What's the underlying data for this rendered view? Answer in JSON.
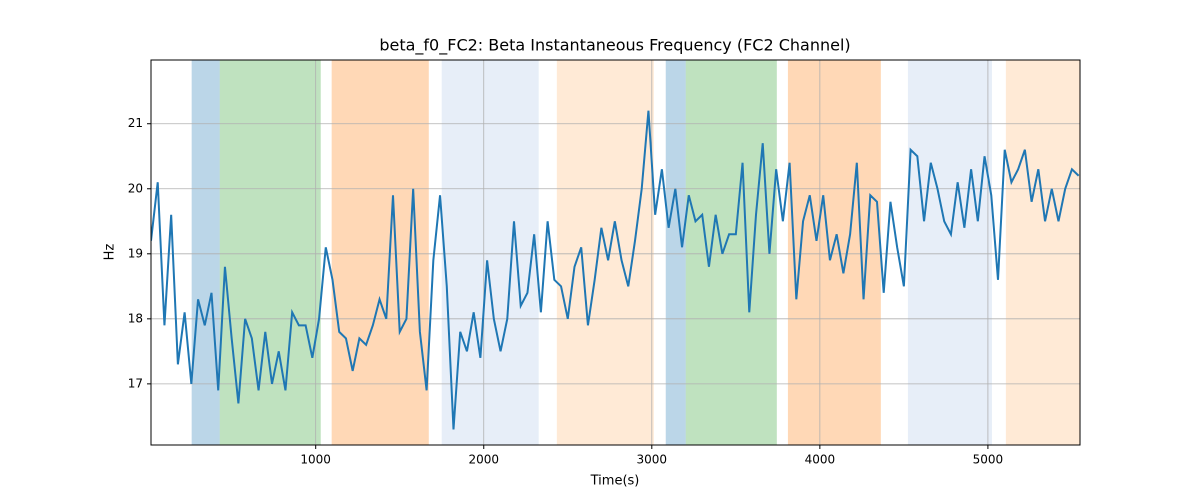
{
  "chart_data": {
    "type": "line",
    "title": "beta_f0_FC2: Beta Instantaneous Frequency (FC2 Channel)",
    "x_label": "Time(s)",
    "y_label": "Hz",
    "x": [
      20,
      60,
      100,
      140,
      180,
      220,
      260,
      300,
      340,
      380,
      420,
      460,
      500,
      540,
      580,
      620,
      660,
      700,
      740,
      780,
      820,
      860,
      900,
      940,
      980,
      1020,
      1060,
      1100,
      1140,
      1180,
      1220,
      1260,
      1300,
      1340,
      1380,
      1420,
      1460,
      1500,
      1540,
      1580,
      1620,
      1660,
      1700,
      1740,
      1780,
      1820,
      1860,
      1900,
      1940,
      1980,
      2020,
      2060,
      2100,
      2140,
      2180,
      2220,
      2260,
      2300,
      2340,
      2380,
      2420,
      2460,
      2500,
      2540,
      2580,
      2620,
      2660,
      2700,
      2740,
      2780,
      2820,
      2860,
      2900,
      2940,
      2980,
      3020,
      3060,
      3100,
      3140,
      3180,
      3220,
      3260,
      3300,
      3340,
      3380,
      3420,
      3460,
      3500,
      3540,
      3580,
      3620,
      3660,
      3700,
      3740,
      3780,
      3820,
      3860,
      3900,
      3940,
      3980,
      4020,
      4060,
      4100,
      4140,
      4180,
      4220,
      4260,
      4300,
      4340,
      4380,
      4420,
      4460,
      4500,
      4540,
      4580,
      4620,
      4660,
      4700,
      4740,
      4780,
      4820,
      4860,
      4900,
      4940,
      4980,
      5020,
      5060,
      5100,
      5140,
      5180,
      5220,
      5260,
      5300,
      5340,
      5380,
      5420,
      5460,
      5500,
      5540
    ],
    "values": [
      19.2,
      20.1,
      17.9,
      19.6,
      17.3,
      18.1,
      17.0,
      18.3,
      17.9,
      18.4,
      16.9,
      18.8,
      17.7,
      16.7,
      18.0,
      17.7,
      16.9,
      17.8,
      17.0,
      17.5,
      16.9,
      18.1,
      17.9,
      17.9,
      17.4,
      18.0,
      19.1,
      18.6,
      17.8,
      17.7,
      17.2,
      17.7,
      17.6,
      17.9,
      18.3,
      18.0,
      19.9,
      17.8,
      18.0,
      20.0,
      17.8,
      16.9,
      18.9,
      19.9,
      18.5,
      16.3,
      17.8,
      17.5,
      18.1,
      17.4,
      18.9,
      18.0,
      17.5,
      18.0,
      19.5,
      18.2,
      18.4,
      19.3,
      18.1,
      19.5,
      18.6,
      18.5,
      18.0,
      18.8,
      19.1,
      17.9,
      18.6,
      19.4,
      18.9,
      19.5,
      18.9,
      18.5,
      19.2,
      20.0,
      21.2,
      19.6,
      20.3,
      19.4,
      20.0,
      19.1,
      19.9,
      19.5,
      19.6,
      18.8,
      19.6,
      19.0,
      19.3,
      19.3,
      20.4,
      18.1,
      19.6,
      20.7,
      19.0,
      20.3,
      19.5,
      20.4,
      18.3,
      19.5,
      19.9,
      19.2,
      19.9,
      18.9,
      19.3,
      18.7,
      19.3,
      20.4,
      18.3,
      19.9,
      19.8,
      18.4,
      19.8,
      19.1,
      18.5,
      20.6,
      20.5,
      19.5,
      20.4,
      20.0,
      19.5,
      19.3,
      20.1,
      19.4,
      20.3,
      19.5,
      20.5,
      19.9,
      18.6,
      20.6,
      20.1,
      20.3,
      20.6,
      19.8,
      20.3,
      19.5,
      20.0,
      19.5,
      20.0,
      20.3,
      20.2
    ],
    "color": "#1f77b4",
    "spans": [
      {
        "start": 262,
        "end": 429,
        "color": "#1f77b4",
        "alpha": 0.3
      },
      {
        "start": 429,
        "end": 1030,
        "color": "#2ca02c",
        "alpha": 0.3
      },
      {
        "start": 1095,
        "end": 1673,
        "color": "#ff7f0e",
        "alpha": 0.3
      },
      {
        "start": 1750,
        "end": 2327,
        "color": "#aec7e8",
        "alpha": 0.3
      },
      {
        "start": 2435,
        "end": 3012,
        "color": "#ffbb78",
        "alpha": 0.3
      },
      {
        "start": 3083,
        "end": 3202,
        "color": "#1f77b4",
        "alpha": 0.3
      },
      {
        "start": 3202,
        "end": 3744,
        "color": "#2ca02c",
        "alpha": 0.3
      },
      {
        "start": 3810,
        "end": 4363,
        "color": "#ff7f0e",
        "alpha": 0.3
      },
      {
        "start": 4524,
        "end": 5024,
        "color": "#aec7e8",
        "alpha": 0.3
      },
      {
        "start": 5107,
        "end": 5548,
        "color": "#ffbb78",
        "alpha": 0.3
      }
    ],
    "xlim": [
      20,
      5548
    ],
    "ylim": [
      16.06,
      21.98
    ],
    "xticks": [
      1000,
      2000,
      3000,
      4000,
      5000
    ],
    "yticks": [
      17,
      18,
      19,
      20,
      21
    ],
    "grid": true
  }
}
